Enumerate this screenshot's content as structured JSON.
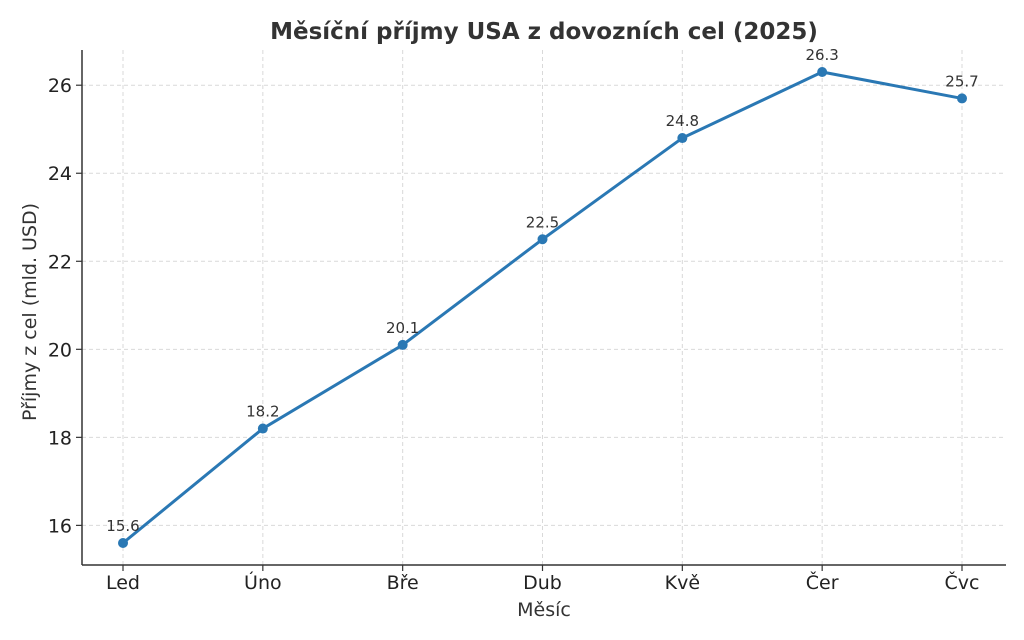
{
  "chart_data": {
    "type": "line",
    "title": "Měsíční příjmy USA z dovozních cel (2025)",
    "xlabel": "Měsíc",
    "ylabel": "Příjmy z cel (mld. USD)",
    "categories": [
      "Led",
      "Úno",
      "Bře",
      "Dub",
      "Kvě",
      "Čer",
      "Čvc"
    ],
    "series": [
      {
        "values": [
          15.6,
          18.2,
          20.1,
          22.5,
          24.8,
          26.3,
          25.7
        ]
      }
    ],
    "data_labels": [
      "15.6",
      "18.2",
      "20.1",
      "22.5",
      "24.8",
      "26.3",
      "25.7"
    ],
    "yticks": [
      16,
      18,
      20,
      22,
      24,
      26
    ],
    "ytick_labels": [
      "16",
      "18",
      "20",
      "22",
      "24",
      "26"
    ],
    "ylim": [
      15.1,
      26.8
    ],
    "grid": true,
    "color": "#2a78b4"
  }
}
